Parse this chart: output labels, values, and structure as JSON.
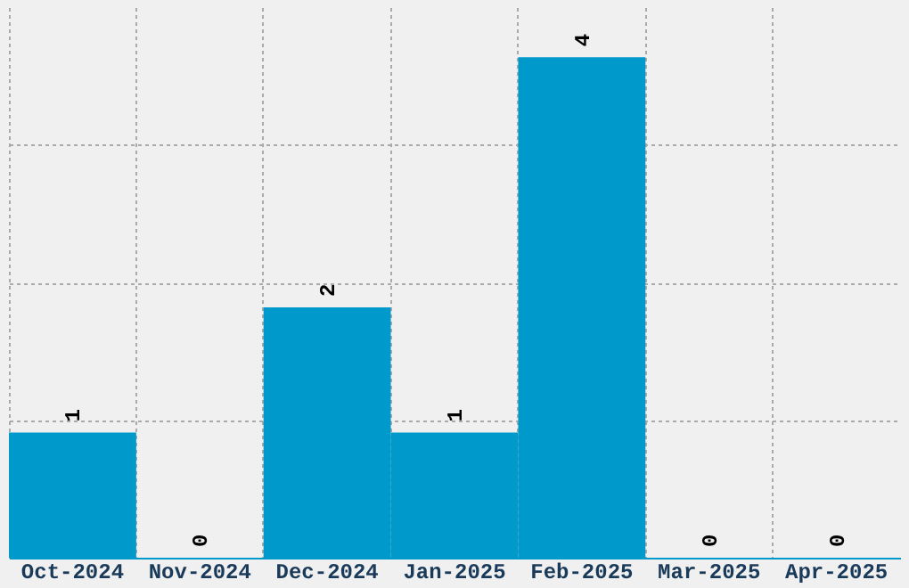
{
  "chart_data": {
    "type": "bar",
    "categories": [
      "Oct-2024",
      "Nov-2024",
      "Dec-2024",
      "Jan-2025",
      "Feb-2025",
      "Mar-2025",
      "Apr-2025"
    ],
    "values": [
      1,
      0,
      2,
      1,
      4,
      0,
      0
    ],
    "color": "#0099cc",
    "data_labels": true,
    "ylim": [
      0,
      4.4
    ],
    "yticks": [
      {
        "value": 1.1,
        "label": null
      },
      {
        "value": 2.2,
        "label": null
      },
      {
        "value": 3.3,
        "label": null
      }
    ],
    "tick_labels": "x",
    "grid": true
  }
}
